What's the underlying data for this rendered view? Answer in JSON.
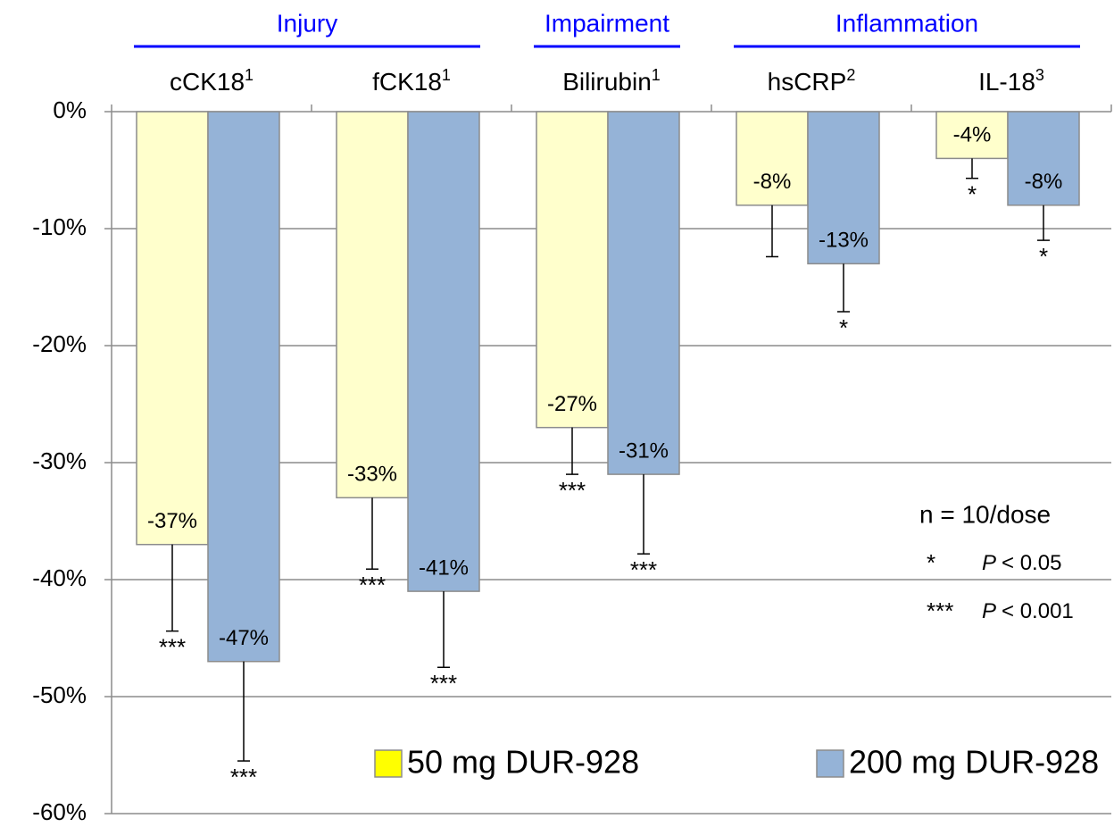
{
  "chart_data": {
    "type": "bar",
    "categories": [
      "cCK18",
      "fCK18",
      "Bilirubin",
      "hsCRP",
      "IL-18"
    ],
    "category_superscripts": [
      "1",
      "1",
      "1",
      "2",
      "3"
    ],
    "groups": [
      {
        "label": "Injury",
        "span": [
          0,
          1
        ]
      },
      {
        "label": "Impairment",
        "span": [
          2,
          2
        ]
      },
      {
        "label": "Inflammation",
        "span": [
          3,
          4
        ]
      }
    ],
    "series": [
      {
        "name": "50 mg DUR-928",
        "color": "#ffffcc",
        "values": [
          -37,
          -33,
          -27,
          -8,
          -4
        ],
        "value_labels": [
          "-37%",
          "-33%",
          "-27%",
          "-8%",
          "-4%"
        ],
        "errors": [
          7.4,
          6.1,
          4.0,
          4.4,
          1.7
        ],
        "significance": [
          "***",
          "***",
          "***",
          null,
          "*"
        ]
      },
      {
        "name": "200 mg DUR-928",
        "color": "#95b3d7",
        "values": [
          -47,
          -41,
          -31,
          -13,
          -8
        ],
        "value_labels": [
          "-47%",
          "-41%",
          "-31%",
          "-13%",
          "-8%"
        ],
        "errors": [
          8.5,
          6.5,
          6.8,
          4.1,
          3.0
        ],
        "significance": [
          "***",
          "***",
          "***",
          "*",
          "*"
        ]
      }
    ],
    "ylim": [
      -60,
      0
    ],
    "yticks": [
      {
        "value": 0,
        "label": "0%"
      },
      {
        "value": -10,
        "label": "-10%"
      },
      {
        "value": -20,
        "label": "-20%"
      },
      {
        "value": -30,
        "label": "-30%"
      },
      {
        "value": -40,
        "label": "-40%"
      },
      {
        "value": -50,
        "label": "-50%"
      },
      {
        "value": -60,
        "label": "-60%"
      }
    ],
    "grid": true,
    "legend": "bottom",
    "annotation": {
      "title": "n = 10/dose",
      "lines": [
        {
          "symbol": "*",
          "p": "P",
          "text": "< 0.05"
        },
        {
          "symbol": "***",
          "p": "P",
          "text": "< 0.001"
        }
      ]
    }
  }
}
